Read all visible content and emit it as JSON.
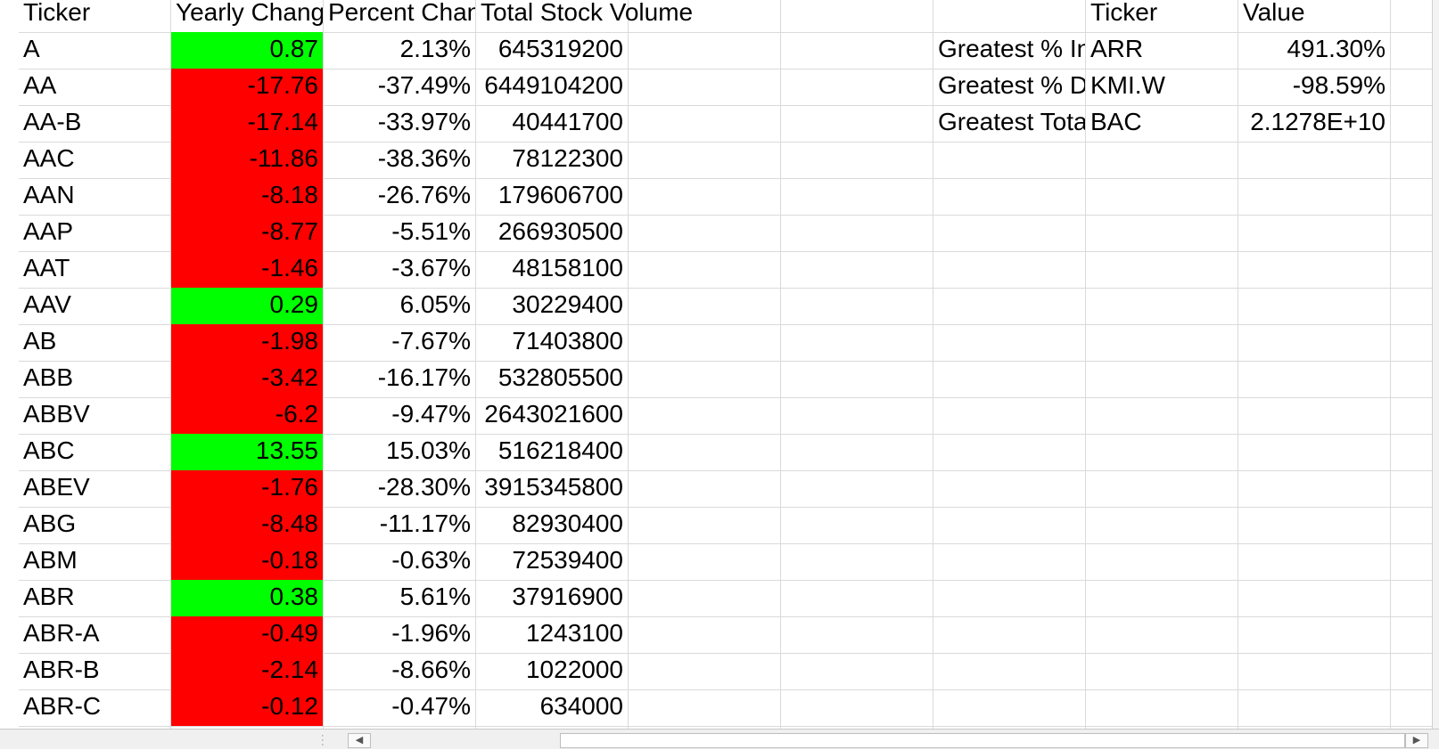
{
  "headers": {
    "ticker": "Ticker",
    "yearly_change": "Yearly Change",
    "percent_change": "Percent Change",
    "total_volume": "Total Stock Volume",
    "summary_ticker": "Ticker",
    "summary_value": "Value"
  },
  "rows": [
    {
      "ticker": "A",
      "change": "0.87",
      "pct": "2.13%",
      "volume": "645319200",
      "status": "positive"
    },
    {
      "ticker": "AA",
      "change": "-17.76",
      "pct": "-37.49%",
      "volume": "6449104200",
      "status": "negative"
    },
    {
      "ticker": "AA-B",
      "change": "-17.14",
      "pct": "-33.97%",
      "volume": "40441700",
      "status": "negative"
    },
    {
      "ticker": "AAC",
      "change": "-11.86",
      "pct": "-38.36%",
      "volume": "78122300",
      "status": "negative"
    },
    {
      "ticker": "AAN",
      "change": "-8.18",
      "pct": "-26.76%",
      "volume": "179606700",
      "status": "negative"
    },
    {
      "ticker": "AAP",
      "change": "-8.77",
      "pct": "-5.51%",
      "volume": "266930500",
      "status": "negative"
    },
    {
      "ticker": "AAT",
      "change": "-1.46",
      "pct": "-3.67%",
      "volume": "48158100",
      "status": "negative"
    },
    {
      "ticker": "AAV",
      "change": "0.29",
      "pct": "6.05%",
      "volume": "30229400",
      "status": "positive"
    },
    {
      "ticker": "AB",
      "change": "-1.98",
      "pct": "-7.67%",
      "volume": "71403800",
      "status": "negative"
    },
    {
      "ticker": "ABB",
      "change": "-3.42",
      "pct": "-16.17%",
      "volume": "532805500",
      "status": "negative"
    },
    {
      "ticker": "ABBV",
      "change": "-6.2",
      "pct": "-9.47%",
      "volume": "2643021600",
      "status": "negative"
    },
    {
      "ticker": "ABC",
      "change": "13.55",
      "pct": "15.03%",
      "volume": "516218400",
      "status": "positive"
    },
    {
      "ticker": "ABEV",
      "change": "-1.76",
      "pct": "-28.30%",
      "volume": "3915345800",
      "status": "negative"
    },
    {
      "ticker": "ABG",
      "change": "-8.48",
      "pct": "-11.17%",
      "volume": "82930400",
      "status": "negative"
    },
    {
      "ticker": "ABM",
      "change": "-0.18",
      "pct": "-0.63%",
      "volume": "72539400",
      "status": "negative"
    },
    {
      "ticker": "ABR",
      "change": "0.38",
      "pct": "5.61%",
      "volume": "37916900",
      "status": "positive"
    },
    {
      "ticker": "ABR-A",
      "change": "-0.49",
      "pct": "-1.96%",
      "volume": "1243100",
      "status": "negative"
    },
    {
      "ticker": "ABR-B",
      "change": "-2.14",
      "pct": "-8.66%",
      "volume": "1022000",
      "status": "negative"
    },
    {
      "ticker": "ABR-C",
      "change": "-0.12",
      "pct": "-0.47%",
      "volume": "634000",
      "status": "negative"
    }
  ],
  "summary": [
    {
      "label": "Greatest % Increase",
      "ticker": "ARR",
      "value": "491.30%"
    },
    {
      "label": "Greatest % Decrease",
      "ticker": "KMI.W",
      "value": "-98.59%"
    },
    {
      "label": "Greatest Total Volume",
      "ticker": "BAC",
      "value": "2.1278E+10"
    }
  ],
  "colors": {
    "positive": "#00ff00",
    "negative": "#ff0000",
    "grid": "#dadada"
  },
  "icons": {
    "scroll_left": "triangle-left-icon",
    "scroll_right": "triangle-right-icon"
  }
}
